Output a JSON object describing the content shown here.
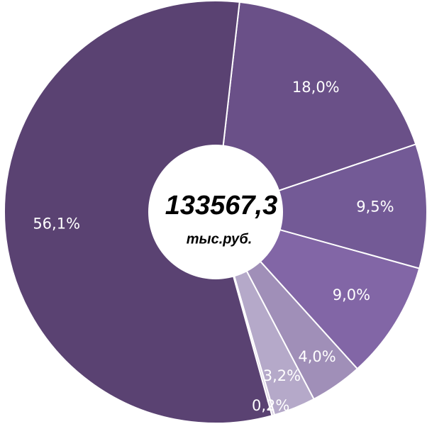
{
  "chart_data": {
    "type": "donut",
    "categories": [
      null,
      null,
      null,
      null,
      null,
      null,
      null
    ],
    "values": [
      18.0,
      9.5,
      9.0,
      4.0,
      3.2,
      0.2,
      56.1
    ],
    "value_labels": [
      "18,0%",
      "9,5%",
      "9,0%",
      "4,0%",
      "3,2%",
      "0,2%",
      "56,1%"
    ],
    "colors": [
      "#6a5088",
      "#735a96",
      "#8266a6",
      "#a08fb8",
      "#b5a9c9",
      "#d8d0e0",
      "#5a4272"
    ],
    "center_value": "133567,3",
    "center_unit": "тыс.руб."
  }
}
